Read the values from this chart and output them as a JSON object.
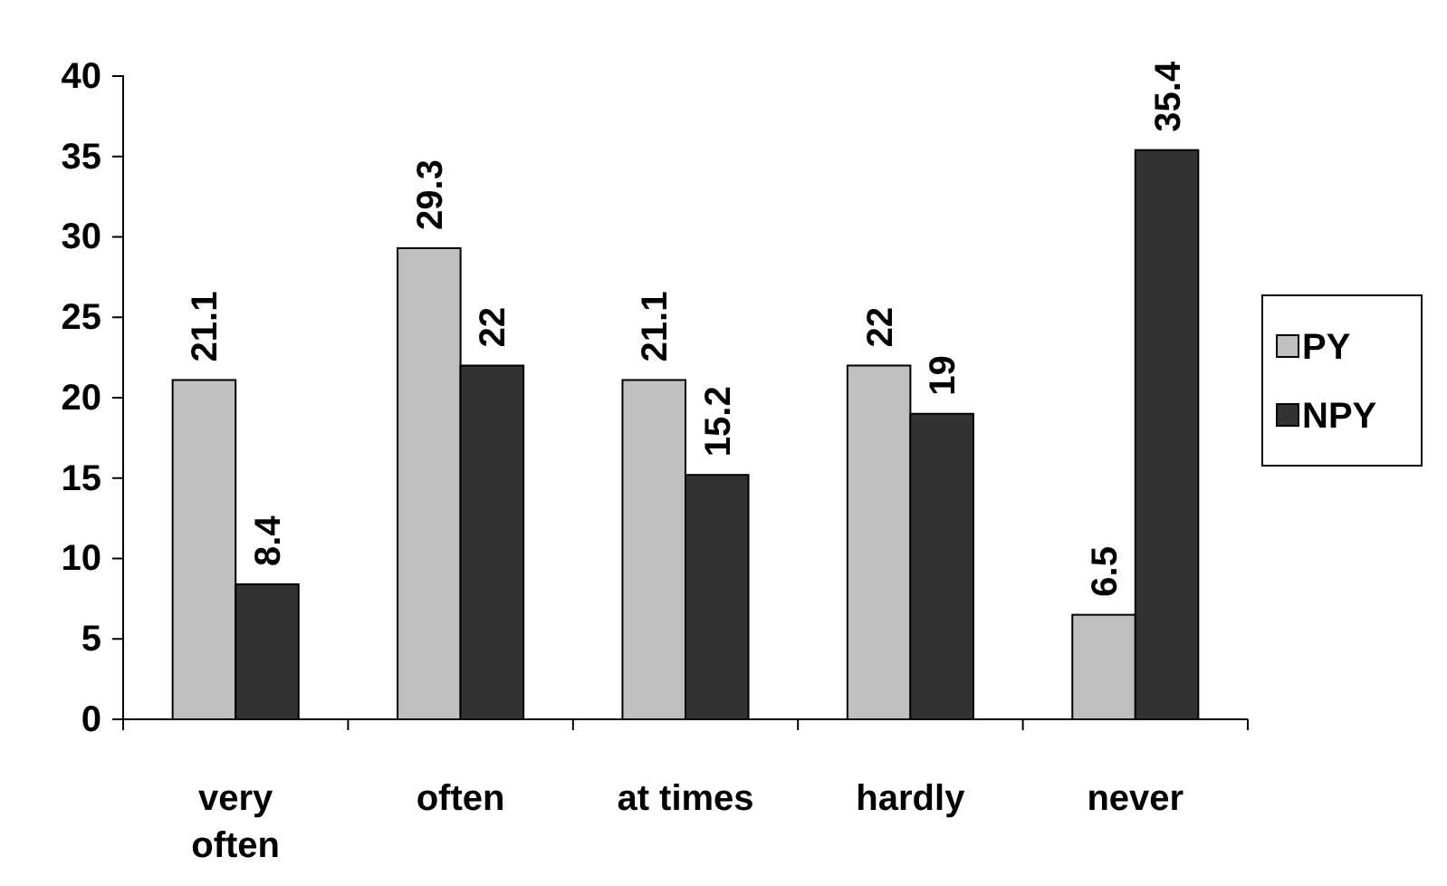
{
  "chart_data": {
    "type": "bar",
    "categories": [
      "very often",
      "often",
      "at times",
      "hardly",
      "never"
    ],
    "series": [
      {
        "name": "PY",
        "color": "#c0c0c0",
        "values": [
          21.1,
          29.3,
          21.1,
          22,
          6.5
        ]
      },
      {
        "name": "NPY",
        "color": "#333333",
        "values": [
          8.4,
          22,
          15.2,
          19,
          35.4
        ]
      }
    ],
    "ylim": [
      0,
      40
    ],
    "yticks": [
      0,
      5,
      10,
      15,
      20,
      25,
      30,
      35,
      40
    ],
    "data_labels": true,
    "legend": "right",
    "grid": false
  }
}
